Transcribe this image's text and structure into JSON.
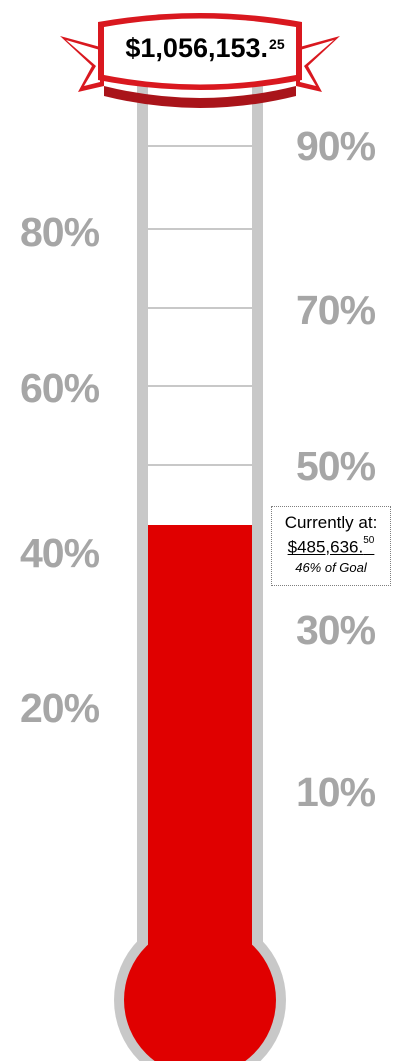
{
  "goal": {
    "amount_main": "$1,056,153.",
    "amount_cents": "25"
  },
  "current": {
    "title": "Currently at:",
    "amount_main": "$485,636.",
    "amount_cents": "50",
    "goal_text": "46% of Goal",
    "fill_fraction": 0.46
  },
  "scale": {
    "right_labels": [
      "90%",
      "70%",
      "50%",
      "30%",
      "10%"
    ],
    "left_labels": [
      "80%",
      "60%",
      "40%",
      "20%"
    ]
  },
  "colors": {
    "mercury": "#e00000",
    "tube_border": "#c8c8c8",
    "label_gray": "#a6a6a6",
    "banner_red": "#d9181f"
  }
}
